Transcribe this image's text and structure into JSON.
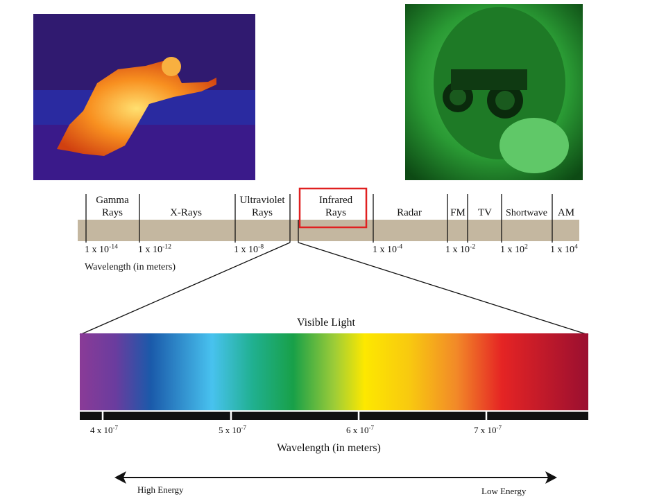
{
  "spectrum": {
    "bands": [
      [
        "Gamma",
        "Rays"
      ],
      [
        "X-Rays"
      ],
      [
        "Ultraviolet",
        "Rays"
      ],
      [
        "Infrared",
        "Rays"
      ],
      [
        "Radar"
      ],
      [
        "FM"
      ],
      [
        "TV"
      ],
      [
        "Shortwave"
      ],
      [
        "AM"
      ]
    ],
    "ticks": [
      {
        "base": "1 x 10",
        "exp": "-14"
      },
      {
        "base": "1 x 10",
        "exp": "-12"
      },
      {
        "base": "1 x 10",
        "exp": "-8"
      },
      {
        "base": "1 x 10",
        "exp": "-4"
      },
      {
        "base": "1 x 10",
        "exp": "-2"
      },
      {
        "base": "1 x 10",
        "exp": "2"
      },
      {
        "base": "1 x 10",
        "exp": "4"
      }
    ],
    "axis_label": "Wavelength (in meters)"
  },
  "visible": {
    "title": "Visible Light",
    "ticks": [
      {
        "base": "4 x 10",
        "exp": "-7"
      },
      {
        "base": "5 x 10",
        "exp": "-7"
      },
      {
        "base": "6 x 10",
        "exp": "-7"
      },
      {
        "base": "7 x 10",
        "exp": "-7"
      }
    ],
    "axis_label": "Wavelength (in meters)"
  },
  "energy": {
    "left": "High Energy",
    "right": "Low Energy"
  }
}
